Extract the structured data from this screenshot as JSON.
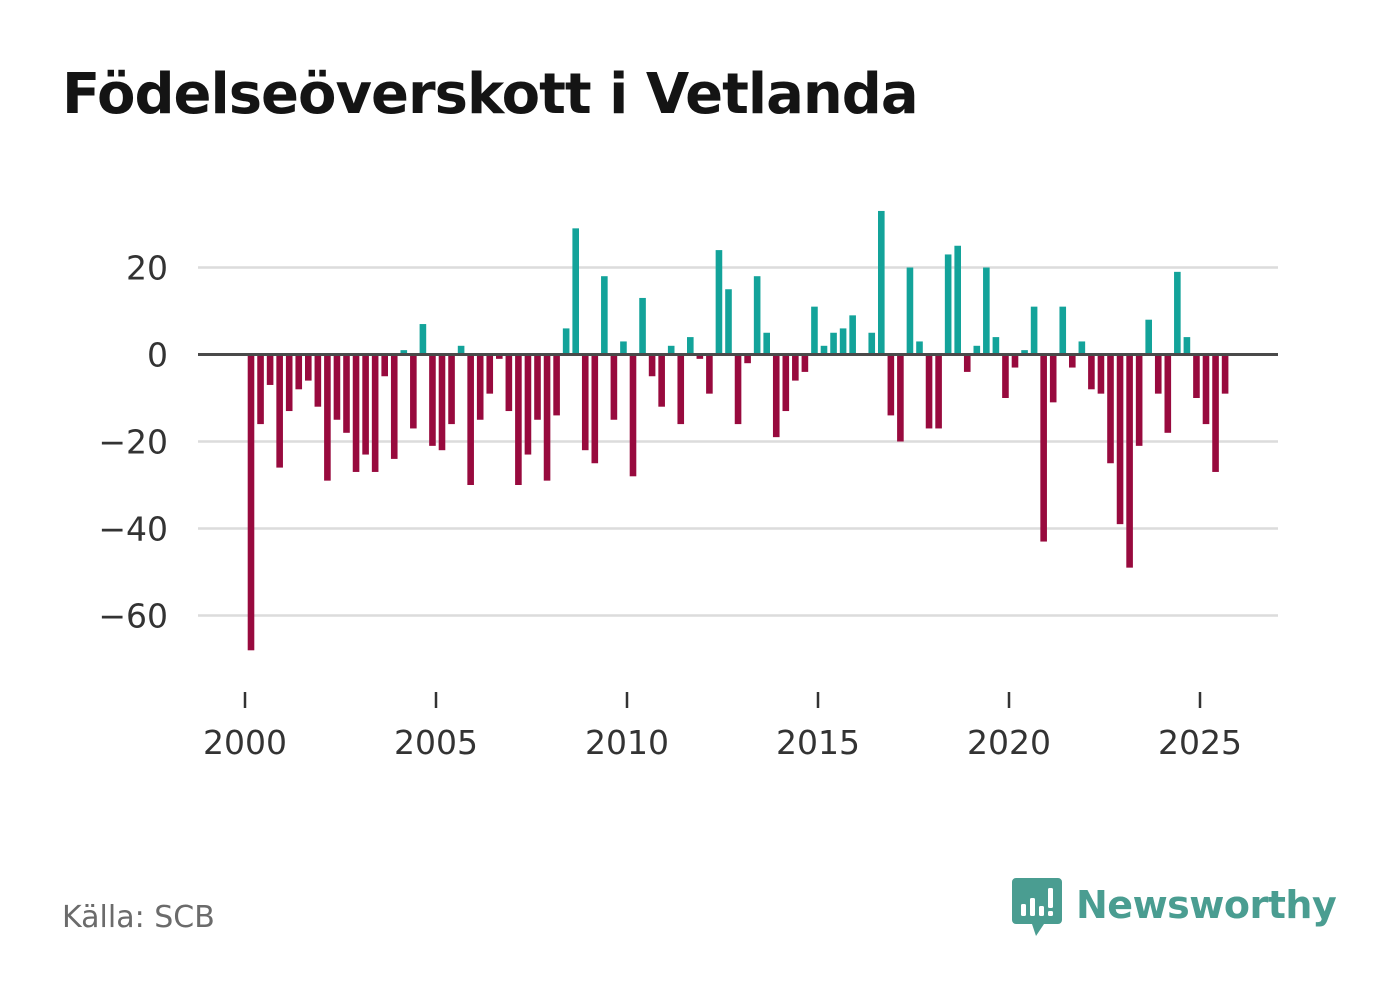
{
  "title": "Födelseöverskott i Vetlanda",
  "source": "Källa: SCB",
  "brand": {
    "name": "Newsworthy",
    "icon": "newsworthy-logo-icon",
    "color": "#4a9d91"
  },
  "colors": {
    "positive": "#13a39a",
    "negative": "#980a3e",
    "grid": "#dcdcdc",
    "zero_line": "#4a4a4a",
    "text": "#333333"
  },
  "chart_data": {
    "type": "bar",
    "title": "Födelseöverskott i Vetlanda",
    "xlabel": "",
    "ylabel": "",
    "frequency": "quarterly",
    "start": "2000 Q1",
    "xlim": [
      1999.5,
      2027.1
    ],
    "ylim": [
      -80,
      35
    ],
    "yticks": [
      20,
      0,
      -20,
      -40,
      -60
    ],
    "ytick_labels": [
      "20",
      "0",
      "−20",
      "−40",
      "−60"
    ],
    "xticks": [
      2000,
      2005,
      2010,
      2015,
      2020,
      2025
    ],
    "xtick_labels": [
      "2000",
      "2005",
      "2010",
      "2015",
      "2020",
      "2025"
    ],
    "grid": true,
    "values": [
      -68,
      -16,
      -7,
      -26,
      -13,
      -8,
      -6,
      -12,
      -29,
      -15,
      -18,
      -27,
      -23,
      -27,
      -5,
      -24,
      1,
      -17,
      7,
      -21,
      -22,
      -16,
      2,
      -30,
      -15,
      -9,
      -1,
      -13,
      -30,
      -23,
      -15,
      -29,
      -14,
      6,
      29,
      -22,
      -25,
      18,
      -15,
      3,
      -28,
      13,
      -5,
      -12,
      2,
      -16,
      4,
      -1,
      -9,
      24,
      15,
      -16,
      -2,
      18,
      5,
      -19,
      -13,
      -6,
      -4,
      11,
      2,
      5,
      6,
      9,
      0,
      5,
      33,
      -14,
      -20,
      20,
      3,
      -17,
      -17,
      23,
      25,
      -4,
      2,
      20,
      4,
      -10,
      -3,
      1,
      11,
      -43,
      -11,
      11,
      -3,
      3,
      -8,
      -9,
      -25,
      -39,
      -49,
      -21,
      8,
      -9,
      -18,
      19,
      4,
      -10,
      -16,
      -27,
      -9
    ]
  }
}
